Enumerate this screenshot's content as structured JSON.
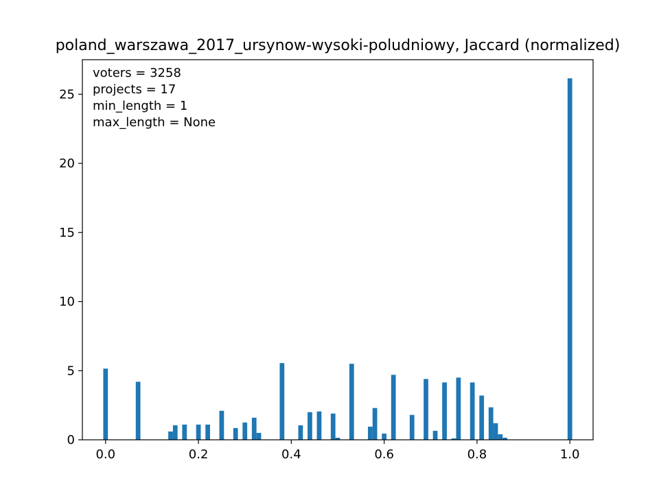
{
  "chart_data": {
    "type": "bar",
    "title": "poland_warszawa_2017_ursynow-wysoki-poludniowy, Jaccard (normalized)",
    "xlabel": "",
    "ylabel": "",
    "xlim": [
      -0.05,
      1.05
    ],
    "ylim": [
      0,
      27.5
    ],
    "x_ticks": [
      "0.0",
      "0.2",
      "0.4",
      "0.6",
      "0.8",
      "1.0"
    ],
    "x_tick_values": [
      0.0,
      0.2,
      0.4,
      0.6,
      0.8,
      1.0
    ],
    "y_ticks": [
      "0",
      "5",
      "10",
      "15",
      "20",
      "25"
    ],
    "y_tick_values": [
      0,
      5,
      10,
      15,
      20,
      25
    ],
    "bin_width": 0.01,
    "bar_color": "#1f77b4",
    "grid": false,
    "annotations": [
      "voters = 3258",
      "projects = 17",
      "min_length = 1",
      "max_length = None"
    ],
    "annotation_placement": "top-left",
    "bins": [
      {
        "x": 0.0,
        "value": 5.15
      },
      {
        "x": 0.07,
        "value": 4.2
      },
      {
        "x": 0.14,
        "value": 0.6
      },
      {
        "x": 0.15,
        "value": 1.05
      },
      {
        "x": 0.17,
        "value": 1.1
      },
      {
        "x": 0.2,
        "value": 1.1
      },
      {
        "x": 0.22,
        "value": 1.1
      },
      {
        "x": 0.25,
        "value": 2.1
      },
      {
        "x": 0.28,
        "value": 0.85
      },
      {
        "x": 0.3,
        "value": 1.25
      },
      {
        "x": 0.32,
        "value": 1.6
      },
      {
        "x": 0.33,
        "value": 0.5
      },
      {
        "x": 0.38,
        "value": 5.55
      },
      {
        "x": 0.42,
        "value": 1.05
      },
      {
        "x": 0.44,
        "value": 2.0
      },
      {
        "x": 0.46,
        "value": 2.05
      },
      {
        "x": 0.49,
        "value": 1.9
      },
      {
        "x": 0.5,
        "value": 0.15
      },
      {
        "x": 0.53,
        "value": 5.5
      },
      {
        "x": 0.57,
        "value": 0.95
      },
      {
        "x": 0.58,
        "value": 2.3
      },
      {
        "x": 0.6,
        "value": 0.45
      },
      {
        "x": 0.62,
        "value": 4.7
      },
      {
        "x": 0.66,
        "value": 1.8
      },
      {
        "x": 0.69,
        "value": 4.4
      },
      {
        "x": 0.71,
        "value": 0.65
      },
      {
        "x": 0.73,
        "value": 4.15
      },
      {
        "x": 0.75,
        "value": 0.1
      },
      {
        "x": 0.76,
        "value": 4.5
      },
      {
        "x": 0.79,
        "value": 4.15
      },
      {
        "x": 0.81,
        "value": 3.2
      },
      {
        "x": 0.83,
        "value": 2.35
      },
      {
        "x": 0.84,
        "value": 1.2
      },
      {
        "x": 0.85,
        "value": 0.4
      },
      {
        "x": 0.86,
        "value": 0.15
      },
      {
        "x": 1.0,
        "value": 26.15
      }
    ]
  }
}
